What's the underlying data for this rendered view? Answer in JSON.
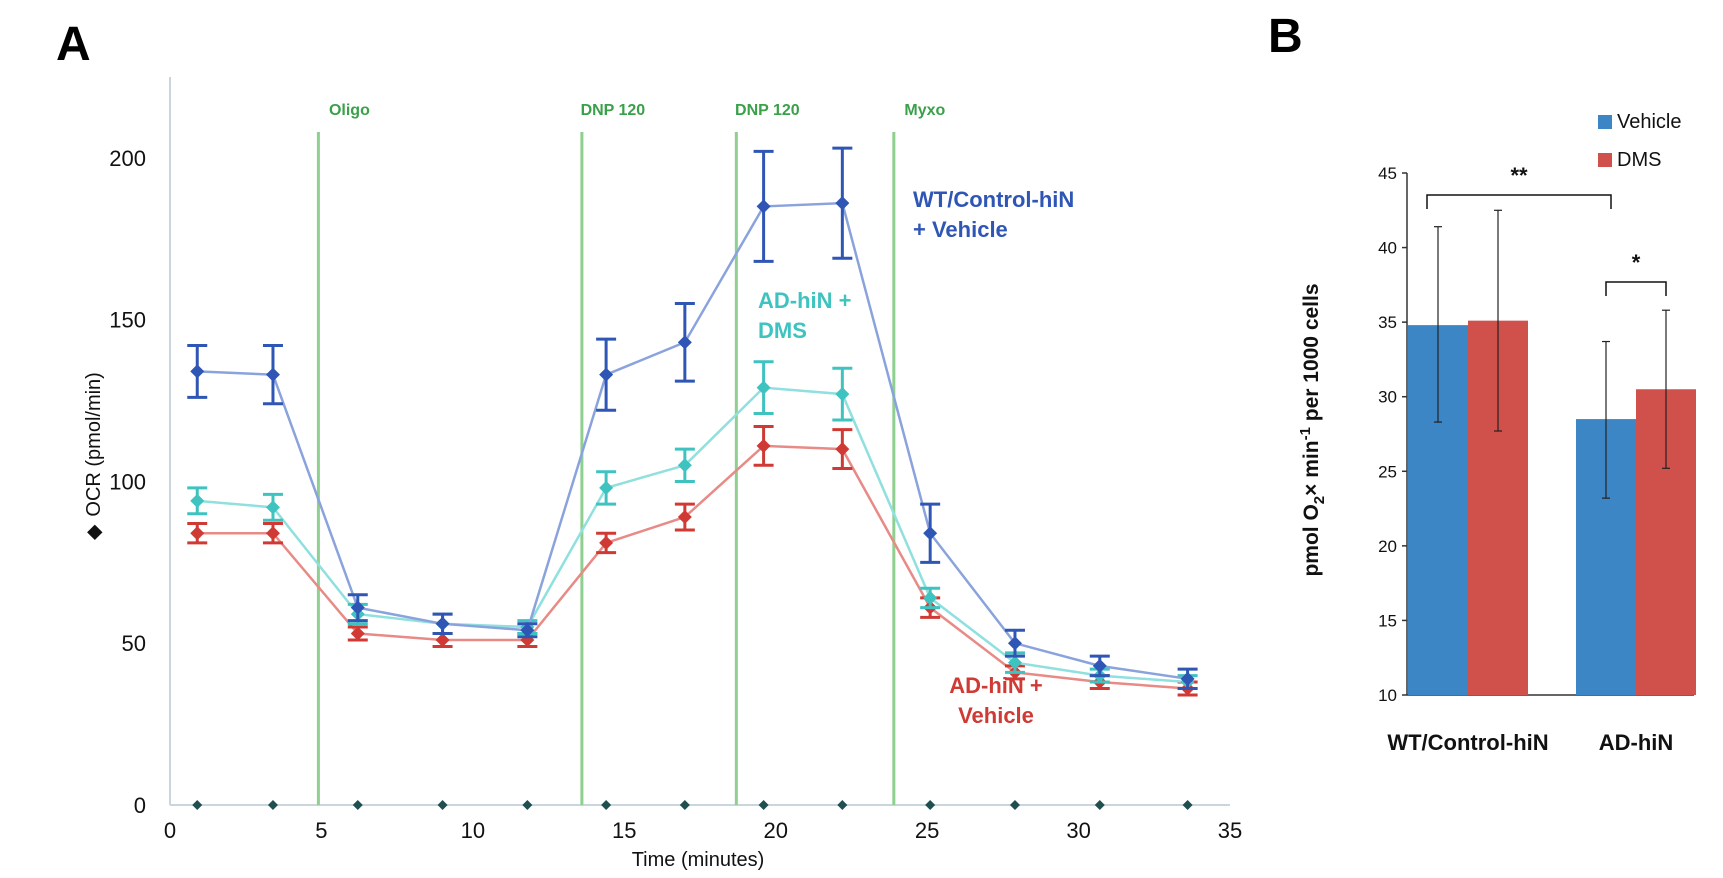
{
  "panels": {
    "a_letter": "A",
    "b_letter": "B"
  },
  "colors": {
    "wt": "#2f56b5",
    "wt_line": "#8aa3dd",
    "ad_dms": "#3fc3c0",
    "ad_dms_line": "#8fe0de",
    "ad_vehicle": "#d03a35",
    "ad_vehicle_line": "#e88a85",
    "injection": "#8fcf8f",
    "vehicle_bar": "#3d86c6",
    "dms_bar": "#d0504c",
    "zero_marker": "#1f4f4f"
  },
  "chart_data": [
    {
      "type": "line",
      "panel": "A",
      "title": "",
      "xlabel": "Time (minutes)",
      "ylabel": "OCR (pmol/min)",
      "ylabel_marker": "◆",
      "xlim": [
        0,
        35
      ],
      "ylim": [
        0,
        225
      ],
      "xticks": [
        0,
        5,
        10,
        15,
        20,
        25,
        30,
        35
      ],
      "yticks": [
        0,
        50,
        100,
        150,
        200
      ],
      "injections": [
        {
          "label": "Oligo",
          "x": 4.9
        },
        {
          "label": "DNP 120",
          "x": 13.6
        },
        {
          "label": "DNP 120",
          "x": 18.7
        },
        {
          "label": "Myxo",
          "x": 23.9
        }
      ],
      "x": [
        0.9,
        3.4,
        6.2,
        9.0,
        11.8,
        14.4,
        17.0,
        19.6,
        22.2,
        25.1,
        27.9,
        30.7,
        33.6
      ],
      "series": [
        {
          "name": "WT/Control-hiN + Vehicle",
          "label_lines": [
            "WT/Control-hiN",
            "+ Vehicle"
          ],
          "values": [
            134,
            133,
            61,
            56,
            54,
            133,
            143,
            185,
            186,
            84,
            50,
            43,
            39
          ],
          "errors": [
            8,
            9,
            4,
            3,
            2,
            11,
            12,
            17,
            17,
            9,
            4,
            3,
            3
          ]
        },
        {
          "name": "AD-hiN + DMS",
          "label_lines": [
            "AD-hiN +",
            "DMS"
          ],
          "values": [
            94,
            92,
            59,
            56,
            55,
            98,
            105,
            129,
            127,
            64,
            44,
            40,
            38
          ],
          "errors": [
            4,
            4,
            3,
            3,
            2,
            5,
            5,
            8,
            8,
            3,
            3,
            2,
            2
          ]
        },
        {
          "name": "AD-hiN + Vehicle",
          "label_lines": [
            "AD-hiN +",
            "Vehicle"
          ],
          "values": [
            84,
            84,
            53,
            51,
            51,
            81,
            89,
            111,
            110,
            61,
            41,
            38,
            36
          ],
          "errors": [
            3,
            3,
            2,
            2,
            2,
            3,
            4,
            6,
            6,
            3,
            2,
            2,
            2
          ]
        }
      ],
      "zero_markers_x": [
        0.9,
        3.4,
        6.2,
        9.0,
        11.8,
        14.4,
        17.0,
        19.6,
        22.2,
        25.1,
        27.9,
        30.7,
        33.6
      ]
    },
    {
      "type": "bar",
      "panel": "B",
      "title": "",
      "xlabel": "",
      "ylabel_parts": [
        "pmol O",
        "2",
        "× min",
        "-1",
        " per 1000 cells"
      ],
      "ylim": [
        10,
        45
      ],
      "yticks": [
        10,
        15,
        20,
        25,
        30,
        35,
        40,
        45
      ],
      "categories": [
        "WT/Control-hiN",
        "AD-hiN"
      ],
      "series": [
        {
          "name": "Vehicle",
          "values": [
            34.8,
            28.5
          ],
          "err_low": [
            28.3,
            23.2
          ],
          "err_high": [
            41.4,
            33.7
          ]
        },
        {
          "name": "DMS",
          "values": [
            35.1,
            30.5
          ],
          "err_low": [
            27.7,
            25.2
          ],
          "err_high": [
            42.5,
            35.8
          ]
        }
      ],
      "significance": [
        {
          "label": "**",
          "from": "WT/Control-hiN",
          "to": "AD-hiN"
        },
        {
          "label": "*",
          "from": "AD-hiN:Vehicle",
          "to": "AD-hiN:DMS"
        }
      ],
      "legend": [
        "Vehicle",
        "DMS"
      ],
      "legend_position": "top-right"
    }
  ]
}
